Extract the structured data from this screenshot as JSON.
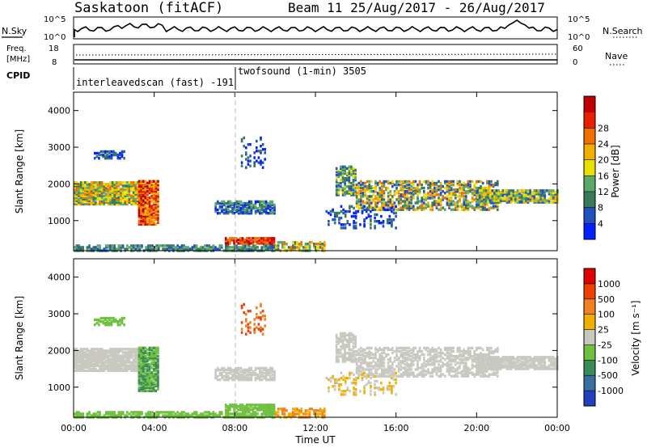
{
  "header": {
    "station": "Saskatoon (fitACF)",
    "beam_date": "Beam 11 25/Aug/2017 - 26/Aug/2017"
  },
  "top_panels": {
    "nsky_label": "N.Sky",
    "nsky_ticks": [
      "10^5",
      "10^0"
    ],
    "nsearch_label": "N.Search",
    "nsearch_ticks": [
      "10^5",
      "10^0"
    ],
    "freq_label_line1": "Freq.",
    "freq_label_line2": "[MHz]",
    "freq_ticks": [
      "18",
      "8"
    ],
    "nave_label": "Nave",
    "nave_ticks": [
      "60",
      "0"
    ],
    "cpid_label": "CPID",
    "cpid_segments": [
      {
        "label": "interleavedscan (fast) -191",
        "start_h": 0,
        "end_h": 8
      },
      {
        "label": "twofsound (1-min) 3505",
        "start_h": 8,
        "end_h": 24
      }
    ]
  },
  "chart_data": [
    {
      "type": "heatmap",
      "name": "Power",
      "ylabel": "Slant Range [km]",
      "yticks": [
        "1000",
        "2000",
        "3000",
        "4000"
      ],
      "ylim": [
        180,
        4500
      ],
      "xlim_hours": [
        0,
        24
      ],
      "colorbar": {
        "label": "Power [dB]",
        "ticks": [
          "4",
          "8",
          "12",
          "16",
          "20",
          "24",
          "28"
        ],
        "colors": [
          "#0020ff",
          "#2050c0",
          "#3a7a5a",
          "#5aa86a",
          "#e8e000",
          "#f0b000",
          "#f07000",
          "#e82000",
          "#c00000"
        ]
      }
    },
    {
      "type": "heatmap",
      "name": "Velocity",
      "ylabel": "Slant Range [km]",
      "yticks": [
        "1000",
        "2000",
        "3000",
        "4000"
      ],
      "ylim": [
        180,
        4500
      ],
      "xlim_hours": [
        0,
        24
      ],
      "xlabel": "Time UT",
      "xticks": [
        "00:00",
        "04:00",
        "08:00",
        "12:00",
        "16:00",
        "20:00",
        "00:00"
      ],
      "colorbar": {
        "label": "Velocity [m s⁻¹]",
        "ticks": [
          "1000",
          "500",
          "100",
          "25",
          "-25",
          "-100",
          "-500",
          "-1000"
        ],
        "colors": [
          "#2040c0",
          "#3a70a0",
          "#3a8a5a",
          "#70c040",
          "#c8c8c0",
          "#f0b000",
          "#f08020",
          "#f04000",
          "#e00000"
        ]
      }
    }
  ]
}
